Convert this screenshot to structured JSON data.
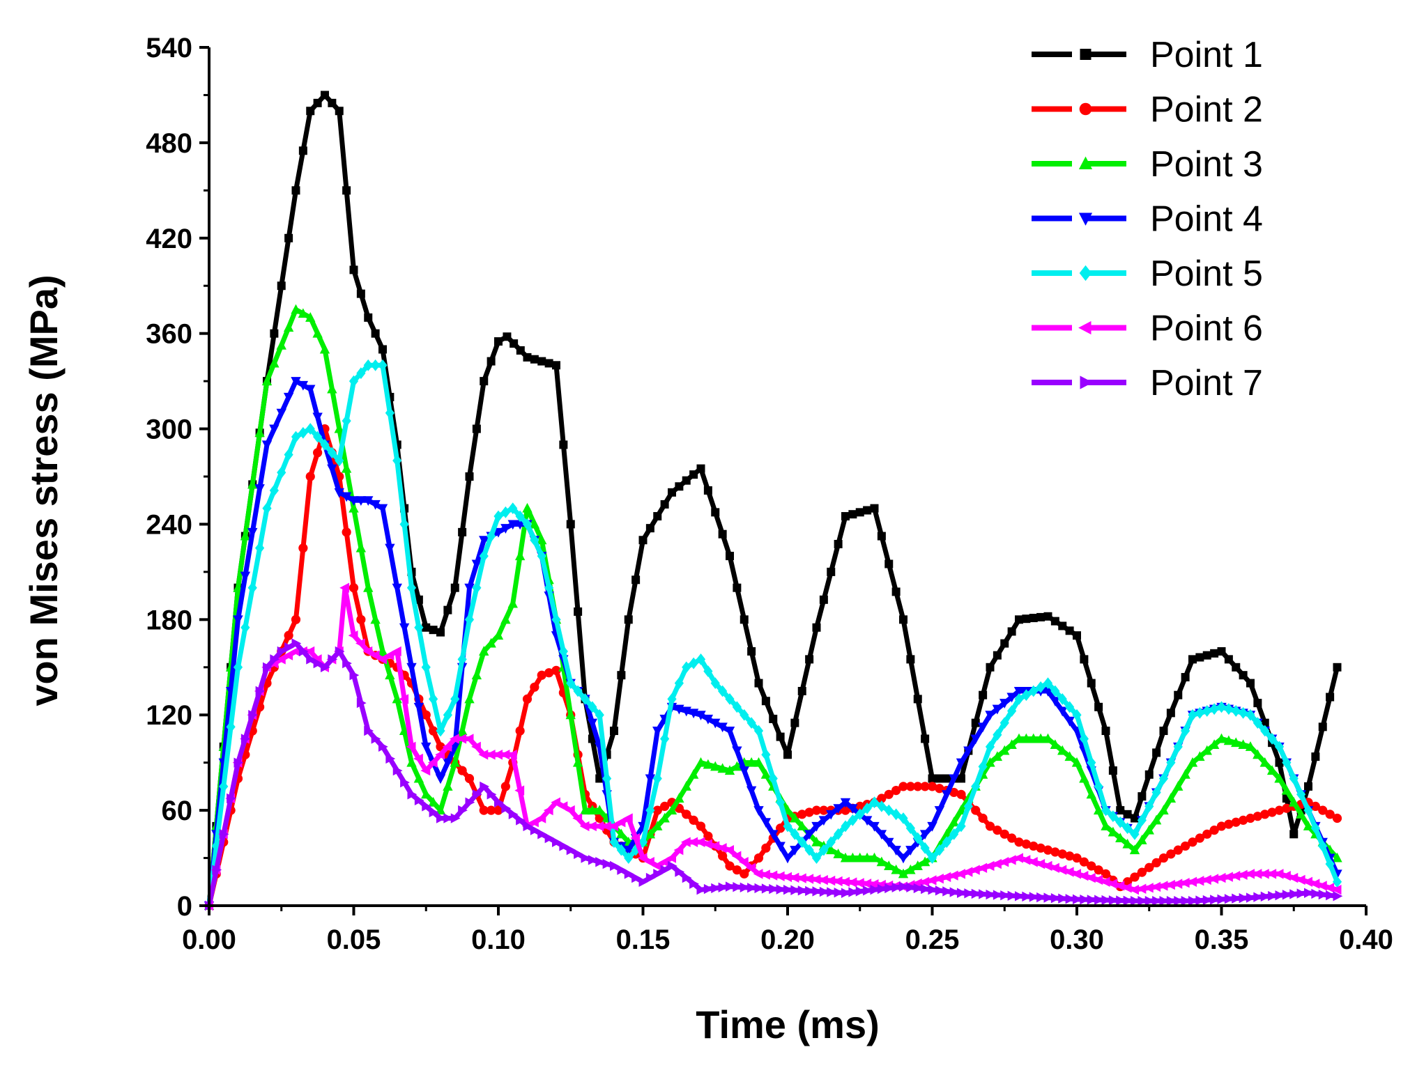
{
  "chart_data": {
    "type": "line",
    "title": "",
    "xlabel": "Time (ms)",
    "ylabel": "von Mises stress (MPa)",
    "xlim": [
      0,
      0.4
    ],
    "ylim": [
      0,
      540
    ],
    "xticks": [
      "0.00",
      "0.05",
      "0.10",
      "0.15",
      "0.20",
      "0.25",
      "0.30",
      "0.35",
      "0.40"
    ],
    "yticks": [
      "0",
      "60",
      "120",
      "180",
      "240",
      "300",
      "360",
      "420",
      "480",
      "540"
    ],
    "legend_position": "top-right",
    "series": [
      {
        "name": "Point 1",
        "color": "#000000",
        "marker": "square",
        "x": [
          0,
          0.01,
          0.02,
          0.03,
          0.035,
          0.04,
          0.045,
          0.05,
          0.055,
          0.06,
          0.065,
          0.07,
          0.075,
          0.08,
          0.085,
          0.09,
          0.095,
          0.1,
          0.103,
          0.11,
          0.12,
          0.125,
          0.13,
          0.135,
          0.14,
          0.145,
          0.15,
          0.16,
          0.17,
          0.18,
          0.19,
          0.2,
          0.21,
          0.22,
          0.23,
          0.24,
          0.25,
          0.26,
          0.27,
          0.28,
          0.29,
          0.3,
          0.31,
          0.315,
          0.32,
          0.33,
          0.34,
          0.35,
          0.36,
          0.37,
          0.375,
          0.38,
          0.39
        ],
        "y": [
          0,
          200,
          330,
          450,
          500,
          510,
          500,
          400,
          370,
          350,
          290,
          210,
          175,
          172,
          200,
          270,
          330,
          355,
          358,
          345,
          340,
          240,
          130,
          80,
          110,
          180,
          230,
          260,
          275,
          220,
          140,
          95,
          175,
          245,
          250,
          180,
          80,
          80,
          150,
          180,
          182,
          170,
          110,
          60,
          55,
          110,
          155,
          160,
          140,
          90,
          45,
          75,
          150
        ]
      },
      {
        "name": "Point 2",
        "color": "#ff0000",
        "marker": "circle",
        "x": [
          0,
          0.01,
          0.02,
          0.03,
          0.035,
          0.04,
          0.045,
          0.05,
          0.055,
          0.06,
          0.065,
          0.07,
          0.075,
          0.08,
          0.085,
          0.09,
          0.095,
          0.1,
          0.105,
          0.11,
          0.115,
          0.12,
          0.125,
          0.13,
          0.135,
          0.14,
          0.145,
          0.15,
          0.155,
          0.16,
          0.17,
          0.18,
          0.185,
          0.19,
          0.2,
          0.21,
          0.22,
          0.23,
          0.24,
          0.25,
          0.26,
          0.27,
          0.28,
          0.29,
          0.3,
          0.31,
          0.315,
          0.32,
          0.33,
          0.34,
          0.35,
          0.36,
          0.37,
          0.38,
          0.39
        ],
        "y": [
          0,
          80,
          140,
          180,
          270,
          300,
          270,
          200,
          160,
          155,
          150,
          140,
          120,
          100,
          90,
          80,
          60,
          60,
          90,
          130,
          145,
          148,
          120,
          70,
          55,
          40,
          35,
          30,
          60,
          65,
          50,
          25,
          20,
          30,
          55,
          60,
          60,
          65,
          75,
          75,
          70,
          50,
          40,
          35,
          30,
          20,
          12,
          18,
          30,
          40,
          50,
          55,
          60,
          65,
          55
        ]
      },
      {
        "name": "Point 3",
        "color": "#00ee00",
        "marker": "triangle-up",
        "x": [
          0,
          0.01,
          0.02,
          0.03,
          0.035,
          0.04,
          0.045,
          0.05,
          0.055,
          0.06,
          0.065,
          0.07,
          0.075,
          0.08,
          0.085,
          0.09,
          0.095,
          0.1,
          0.105,
          0.11,
          0.115,
          0.12,
          0.125,
          0.13,
          0.135,
          0.14,
          0.145,
          0.15,
          0.16,
          0.17,
          0.18,
          0.185,
          0.19,
          0.2,
          0.21,
          0.22,
          0.23,
          0.24,
          0.25,
          0.26,
          0.27,
          0.28,
          0.29,
          0.3,
          0.31,
          0.32,
          0.33,
          0.34,
          0.35,
          0.36,
          0.37,
          0.38,
          0.39
        ],
        "y": [
          0,
          200,
          330,
          375,
          370,
          350,
          300,
          250,
          200,
          160,
          130,
          90,
          70,
          60,
          90,
          130,
          160,
          170,
          190,
          250,
          230,
          180,
          120,
          60,
          60,
          50,
          40,
          40,
          60,
          90,
          85,
          90,
          90,
          60,
          40,
          30,
          30,
          20,
          30,
          60,
          90,
          105,
          105,
          90,
          50,
          35,
          60,
          90,
          105,
          100,
          80,
          50,
          30
        ]
      },
      {
        "name": "Point 4",
        "color": "#0000ff",
        "marker": "triangle-down",
        "x": [
          0,
          0.01,
          0.02,
          0.03,
          0.035,
          0.04,
          0.045,
          0.05,
          0.055,
          0.06,
          0.065,
          0.07,
          0.075,
          0.08,
          0.085,
          0.09,
          0.095,
          0.1,
          0.105,
          0.11,
          0.115,
          0.12,
          0.125,
          0.13,
          0.135,
          0.14,
          0.145,
          0.15,
          0.155,
          0.16,
          0.17,
          0.18,
          0.19,
          0.2,
          0.21,
          0.22,
          0.23,
          0.24,
          0.25,
          0.26,
          0.27,
          0.28,
          0.29,
          0.3,
          0.31,
          0.32,
          0.33,
          0.34,
          0.35,
          0.36,
          0.37,
          0.38,
          0.39
        ],
        "y": [
          0,
          180,
          290,
          330,
          325,
          290,
          260,
          255,
          255,
          250,
          200,
          150,
          100,
          80,
          100,
          200,
          230,
          235,
          240,
          240,
          220,
          170,
          140,
          130,
          100,
          40,
          35,
          50,
          110,
          125,
          120,
          110,
          60,
          30,
          50,
          65,
          50,
          30,
          50,
          90,
          120,
          135,
          135,
          110,
          60,
          45,
          80,
          120,
          125,
          120,
          100,
          60,
          20
        ]
      },
      {
        "name": "Point 5",
        "color": "#00eeee",
        "marker": "diamond",
        "x": [
          0,
          0.01,
          0.02,
          0.03,
          0.035,
          0.04,
          0.045,
          0.05,
          0.055,
          0.06,
          0.065,
          0.07,
          0.075,
          0.08,
          0.085,
          0.09,
          0.095,
          0.1,
          0.105,
          0.11,
          0.115,
          0.12,
          0.125,
          0.13,
          0.135,
          0.14,
          0.145,
          0.15,
          0.155,
          0.16,
          0.165,
          0.17,
          0.175,
          0.18,
          0.19,
          0.2,
          0.21,
          0.22,
          0.23,
          0.24,
          0.25,
          0.26,
          0.27,
          0.28,
          0.29,
          0.3,
          0.31,
          0.32,
          0.33,
          0.34,
          0.35,
          0.36,
          0.37,
          0.38,
          0.39
        ],
        "y": [
          0,
          150,
          250,
          295,
          300,
          290,
          280,
          330,
          340,
          340,
          280,
          200,
          150,
          110,
          130,
          180,
          220,
          245,
          250,
          240,
          220,
          180,
          140,
          130,
          120,
          40,
          30,
          40,
          80,
          130,
          150,
          155,
          140,
          130,
          110,
          50,
          30,
          50,
          65,
          55,
          30,
          50,
          100,
          130,
          140,
          120,
          60,
          45,
          80,
          120,
          125,
          120,
          100,
          60,
          15
        ]
      },
      {
        "name": "Point 6",
        "color": "#ff00ff",
        "marker": "triangle-left",
        "x": [
          0,
          0.01,
          0.02,
          0.03,
          0.035,
          0.04,
          0.045,
          0.047,
          0.05,
          0.055,
          0.06,
          0.065,
          0.07,
          0.075,
          0.08,
          0.085,
          0.09,
          0.095,
          0.1,
          0.105,
          0.11,
          0.115,
          0.12,
          0.125,
          0.13,
          0.135,
          0.14,
          0.145,
          0.15,
          0.155,
          0.16,
          0.165,
          0.17,
          0.18,
          0.19,
          0.2,
          0.22,
          0.24,
          0.26,
          0.28,
          0.3,
          0.32,
          0.34,
          0.36,
          0.37,
          0.38,
          0.39
        ],
        "y": [
          0,
          90,
          150,
          160,
          160,
          150,
          160,
          200,
          170,
          160,
          155,
          160,
          100,
          85,
          95,
          105,
          105,
          95,
          95,
          95,
          50,
          55,
          65,
          60,
          50,
          50,
          50,
          55,
          30,
          25,
          30,
          40,
          40,
          35,
          20,
          18,
          15,
          12,
          20,
          30,
          20,
          10,
          15,
          20,
          20,
          15,
          10
        ]
      },
      {
        "name": "Point 7",
        "color": "#9900ff",
        "marker": "triangle-right",
        "x": [
          0,
          0.01,
          0.02,
          0.025,
          0.03,
          0.035,
          0.04,
          0.045,
          0.05,
          0.055,
          0.06,
          0.07,
          0.08,
          0.085,
          0.09,
          0.095,
          0.1,
          0.11,
          0.12,
          0.13,
          0.14,
          0.15,
          0.16,
          0.17,
          0.18,
          0.2,
          0.22,
          0.24,
          0.26,
          0.28,
          0.3,
          0.32,
          0.34,
          0.36,
          0.38,
          0.39
        ],
        "y": [
          0,
          90,
          150,
          160,
          165,
          155,
          150,
          160,
          145,
          110,
          100,
          70,
          55,
          55,
          65,
          75,
          65,
          50,
          40,
          30,
          25,
          15,
          25,
          10,
          12,
          10,
          8,
          12,
          8,
          6,
          4,
          3,
          3,
          5,
          8,
          6
        ]
      }
    ]
  }
}
